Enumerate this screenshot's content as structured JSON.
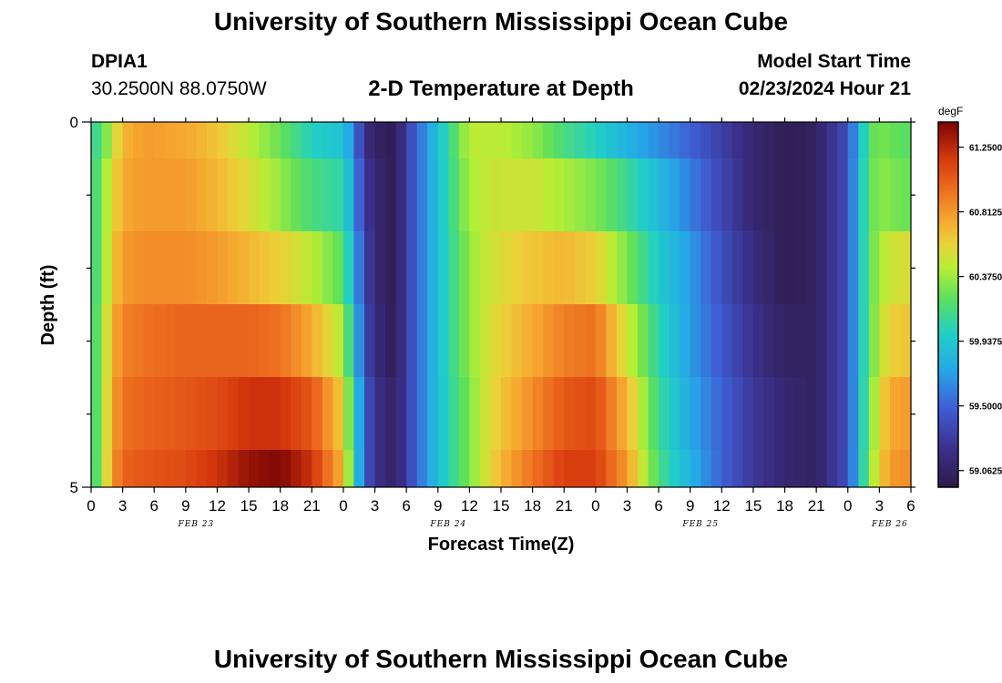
{
  "header": {
    "title": "University of Southern Mississippi Ocean Cube",
    "station_id": "DPIA1",
    "coordinates": "30.2500N  88.0750W",
    "subtitle": "2-D Temperature at Depth",
    "model_start_label": "Model Start Time",
    "model_start_value": "02/23/2024 Hour 21"
  },
  "footer": {
    "next_title": "University of Southern Mississippi Ocean Cube"
  },
  "chart_data": {
    "type": "heatmap",
    "title": "2-D Temperature at Depth",
    "xlabel": "Forecast Time(Z)",
    "ylabel": "Depth (ft)",
    "colorbar_label": "degF",
    "colorbar_ticks": [
      "61.2500",
      "60.8125",
      "60.3750",
      "59.9375",
      "59.5000",
      "59.0625"
    ],
    "colorbar_tick_values": [
      61.25,
      60.8125,
      60.375,
      59.9375,
      59.5,
      59.0625
    ],
    "colorbar_range": [
      58.95,
      61.42
    ],
    "x_ticks": [
      "0",
      "3",
      "6",
      "9",
      "12",
      "15",
      "18",
      "21",
      "0",
      "3",
      "6",
      "9",
      "12",
      "15",
      "18",
      "21",
      "0",
      "3",
      "6",
      "9",
      "12",
      "15",
      "18",
      "21",
      "0",
      "3",
      "6"
    ],
    "x_dates": [
      "FEB 23",
      "FEB 24",
      "FEB 25",
      "FEB 26"
    ],
    "x_date_tick_index": [
      4,
      12,
      20,
      26
    ],
    "y_tick_labels": [
      "0",
      "5"
    ],
    "ylim": [
      0,
      5
    ],
    "depth_levels_ft": [
      0,
      1,
      2,
      3,
      4,
      5
    ],
    "hour_step": 1,
    "temperature_keypoints": {
      "hours": [
        0,
        1,
        2,
        3,
        5,
        9,
        12,
        15,
        18,
        21,
        24,
        25,
        26,
        27,
        29,
        30,
        33,
        36,
        37,
        39,
        42,
        45,
        48,
        51,
        54,
        57,
        60,
        63,
        66,
        69,
        72,
        73,
        74,
        75,
        76,
        78
      ],
      "rows": [
        [
          60.05,
          60.2,
          60.45,
          60.7,
          60.8,
          60.75,
          60.65,
          60.45,
          60.25,
          60.0,
          59.9,
          59.6,
          59.2,
          59.05,
          59.0,
          59.3,
          59.9,
          60.45,
          60.45,
          60.45,
          60.35,
          60.15,
          60.0,
          59.8,
          59.65,
          59.5,
          59.3,
          59.1,
          59.0,
          59.05,
          59.4,
          59.8,
          60.2,
          60.3,
          60.25,
          60.2
        ],
        [
          60.05,
          60.3,
          60.55,
          60.75,
          60.8,
          60.8,
          60.7,
          60.55,
          60.35,
          60.15,
          60.05,
          59.7,
          59.3,
          59.1,
          59.0,
          59.3,
          59.9,
          60.4,
          60.45,
          60.5,
          60.5,
          60.4,
          60.3,
          60.1,
          59.85,
          59.6,
          59.35,
          59.1,
          59.0,
          59.05,
          59.4,
          59.85,
          60.2,
          60.35,
          60.3,
          60.25
        ],
        [
          60.05,
          60.3,
          60.6,
          60.8,
          60.85,
          60.85,
          60.8,
          60.7,
          60.6,
          60.45,
          60.2,
          59.8,
          59.35,
          59.1,
          59.0,
          59.3,
          59.9,
          60.35,
          60.45,
          60.55,
          60.65,
          60.7,
          60.6,
          60.3,
          59.95,
          59.7,
          59.4,
          59.15,
          59.0,
          59.05,
          59.4,
          59.85,
          60.2,
          60.4,
          60.5,
          60.55
        ],
        [
          60.05,
          60.35,
          60.7,
          60.9,
          60.95,
          61.0,
          61.0,
          61.0,
          60.95,
          60.75,
          60.4,
          59.9,
          59.4,
          59.15,
          59.0,
          59.3,
          59.9,
          60.35,
          60.45,
          60.6,
          60.75,
          60.9,
          60.95,
          60.5,
          60.05,
          59.7,
          59.45,
          59.2,
          59.05,
          59.05,
          59.4,
          59.85,
          60.2,
          60.45,
          60.6,
          60.65
        ],
        [
          60.05,
          60.35,
          60.75,
          60.95,
          61.0,
          61.05,
          61.1,
          61.2,
          61.2,
          61.05,
          60.6,
          60.0,
          59.5,
          59.2,
          59.05,
          59.3,
          59.9,
          60.3,
          60.45,
          60.65,
          60.85,
          61.05,
          61.1,
          60.7,
          60.1,
          59.75,
          59.5,
          59.25,
          59.1,
          59.05,
          59.4,
          59.85,
          60.25,
          60.55,
          60.75,
          60.8
        ],
        [
          60.05,
          60.35,
          60.8,
          61.0,
          61.05,
          61.1,
          61.2,
          61.35,
          61.4,
          61.2,
          60.7,
          60.05,
          59.5,
          59.2,
          59.05,
          59.3,
          59.9,
          60.3,
          60.45,
          60.7,
          60.95,
          61.15,
          61.15,
          60.8,
          60.15,
          59.8,
          59.5,
          59.25,
          59.1,
          59.05,
          59.4,
          59.85,
          60.3,
          60.6,
          60.8,
          60.85
        ]
      ]
    }
  }
}
